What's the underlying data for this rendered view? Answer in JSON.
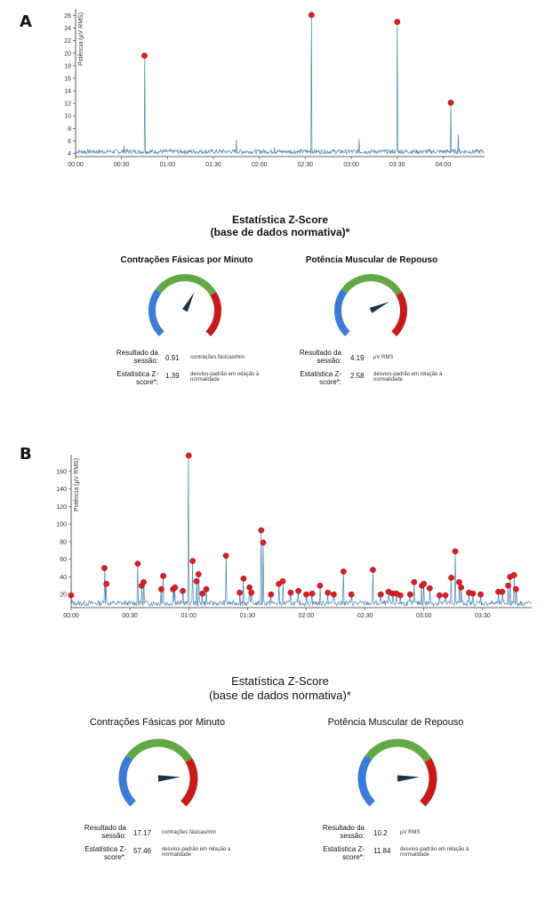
{
  "panels": [
    {
      "letter": "A",
      "chart_data": {
        "type": "line",
        "ylabel": "Potência (μV RMS)",
        "ylim": [
          3.5,
          26.5
        ],
        "yticks": [
          4,
          6,
          8,
          10,
          12,
          14,
          16,
          18,
          20,
          22,
          24,
          26
        ],
        "xticks": [
          "00:00",
          "00:30",
          "01:00",
          "01:30",
          "02:00",
          "02:30",
          "03:00",
          "03:30",
          "04:00"
        ],
        "x_minutes_max": 267,
        "x_unit": "minutes",
        "baseline": 4.3,
        "spikes": [
          {
            "x": 32,
            "y": 5.2
          },
          {
            "x": 45,
            "y": 19.6,
            "marked": true
          },
          {
            "x": 105,
            "y": 6.2
          },
          {
            "x": 130,
            "y": 5.0
          },
          {
            "x": 154,
            "y": 26.1,
            "marked": true
          },
          {
            "x": 185,
            "y": 6.3
          },
          {
            "x": 210,
            "y": 25.0,
            "marked": true
          },
          {
            "x": 245,
            "y": 12.1,
            "marked": true
          },
          {
            "x": 250,
            "y": 7.0
          }
        ]
      },
      "stats_title_line1": "Estatística Z-Score",
      "stats_title_line2": "(base de dados normativa)*",
      "gauges": [
        {
          "title": "Contrações Fásicas por Minuto",
          "needle_fraction": 0.6,
          "rows": [
            {
              "label": "Resultado da sessão:",
              "value": "0.91",
              "unit": "contrações fásicas/min"
            },
            {
              "label": "Estatística Z-score*:",
              "value": "1.39",
              "unit": "desvios-padrão em relação à normalidade"
            }
          ]
        },
        {
          "title": "Potência Muscular de Repouso",
          "needle_fraction": 0.74,
          "rows": [
            {
              "label": "Resultado da sessão:",
              "value": "4.19",
              "unit": "μV RMS"
            },
            {
              "label": "Estatística Z-score*:",
              "value": "2.58",
              "unit": "desvios-padrão em relação à normalidade"
            }
          ]
        }
      ]
    },
    {
      "letter": "B",
      "chart_data": {
        "type": "line",
        "ylabel": "Potência (μV RMS)",
        "ylim": [
          5,
          175
        ],
        "yticks": [
          20,
          40,
          60,
          80,
          100,
          120,
          140,
          160
        ],
        "xticks": [
          "00:00",
          "00:30",
          "01:00",
          "01:30",
          "02:00",
          "02:30",
          "03:00",
          "03:30"
        ],
        "x_minutes_max": 235,
        "x_unit": "minutes",
        "baseline": 10,
        "spikes": [
          {
            "x": 0,
            "y": 19,
            "marked": true
          },
          {
            "x": 17,
            "y": 50,
            "marked": true
          },
          {
            "x": 18,
            "y": 32,
            "marked": true
          },
          {
            "x": 34,
            "y": 55,
            "marked": true
          },
          {
            "x": 36,
            "y": 30,
            "marked": true
          },
          {
            "x": 37,
            "y": 34,
            "marked": true
          },
          {
            "x": 46,
            "y": 26,
            "marked": true
          },
          {
            "x": 47,
            "y": 41,
            "marked": true
          },
          {
            "x": 52,
            "y": 26,
            "marked": true
          },
          {
            "x": 53,
            "y": 28,
            "marked": true
          },
          {
            "x": 57,
            "y": 24,
            "marked": true
          },
          {
            "x": 60,
            "y": 178,
            "marked": true
          },
          {
            "x": 62,
            "y": 58,
            "marked": true
          },
          {
            "x": 64,
            "y": 35,
            "marked": true
          },
          {
            "x": 65,
            "y": 43,
            "marked": true
          },
          {
            "x": 67,
            "y": 21,
            "marked": true
          },
          {
            "x": 69,
            "y": 26,
            "marked": true
          },
          {
            "x": 79,
            "y": 64,
            "marked": true
          },
          {
            "x": 86,
            "y": 22,
            "marked": true
          },
          {
            "x": 88,
            "y": 38,
            "marked": true
          },
          {
            "x": 91,
            "y": 28,
            "marked": true
          },
          {
            "x": 92,
            "y": 22,
            "marked": true
          },
          {
            "x": 97,
            "y": 93,
            "marked": true
          },
          {
            "x": 98,
            "y": 79,
            "marked": true
          },
          {
            "x": 102,
            "y": 20,
            "marked": true
          },
          {
            "x": 106,
            "y": 32,
            "marked": true
          },
          {
            "x": 108,
            "y": 35,
            "marked": true
          },
          {
            "x": 112,
            "y": 22,
            "marked": true
          },
          {
            "x": 116,
            "y": 24,
            "marked": true
          },
          {
            "x": 120,
            "y": 20,
            "marked": true
          },
          {
            "x": 123,
            "y": 21,
            "marked": true
          },
          {
            "x": 127,
            "y": 30,
            "marked": true
          },
          {
            "x": 131,
            "y": 22,
            "marked": true
          },
          {
            "x": 134,
            "y": 20,
            "marked": true
          },
          {
            "x": 139,
            "y": 46,
            "marked": true
          },
          {
            "x": 143,
            "y": 20,
            "marked": true
          },
          {
            "x": 154,
            "y": 48,
            "marked": true
          },
          {
            "x": 158,
            "y": 20,
            "marked": true
          },
          {
            "x": 162,
            "y": 23,
            "marked": true
          },
          {
            "x": 164,
            "y": 21,
            "marked": true
          },
          {
            "x": 166,
            "y": 21,
            "marked": true
          },
          {
            "x": 168,
            "y": 19,
            "marked": true
          },
          {
            "x": 173,
            "y": 20,
            "marked": true
          },
          {
            "x": 175,
            "y": 34,
            "marked": true
          },
          {
            "x": 179,
            "y": 30,
            "marked": true
          },
          {
            "x": 180,
            "y": 32,
            "marked": true
          },
          {
            "x": 183,
            "y": 27,
            "marked": true
          },
          {
            "x": 188,
            "y": 19,
            "marked": true
          },
          {
            "x": 191,
            "y": 19,
            "marked": true
          },
          {
            "x": 194,
            "y": 39,
            "marked": true
          },
          {
            "x": 196,
            "y": 69,
            "marked": true
          },
          {
            "x": 198,
            "y": 34,
            "marked": true
          },
          {
            "x": 199,
            "y": 28,
            "marked": true
          },
          {
            "x": 203,
            "y": 22,
            "marked": true
          },
          {
            "x": 205,
            "y": 21,
            "marked": true
          },
          {
            "x": 209,
            "y": 20,
            "marked": true
          },
          {
            "x": 218,
            "y": 23,
            "marked": true
          },
          {
            "x": 220,
            "y": 23,
            "marked": true
          },
          {
            "x": 223,
            "y": 30,
            "marked": true
          },
          {
            "x": 224,
            "y": 40,
            "marked": true
          },
          {
            "x": 226,
            "y": 42,
            "marked": true
          },
          {
            "x": 227,
            "y": 26,
            "marked": true
          }
        ]
      },
      "stats_title_line1": "Estatística Z-Score",
      "stats_title_line2": "(base de dados normativa)*",
      "gauges": [
        {
          "title": "Contrações Fásicas por Minuto",
          "needle_fraction": 0.82,
          "rows": [
            {
              "label": "Resultado da sessão:",
              "value": "17.17",
              "unit": "contrações fásicas/min"
            },
            {
              "label": "Estatística Z-score*:",
              "value": "57.46",
              "unit": "desvios-padrão em relação à normalidade"
            }
          ]
        },
        {
          "title": "Potência Muscular de Repouso",
          "needle_fraction": 0.82,
          "rows": [
            {
              "label": "Resultado da sessão:",
              "value": "10.2",
              "unit": "μV RMS"
            },
            {
              "label": "Estatística Z-score*:",
              "value": "11.84",
              "unit": "desvios-padrão em relação à normalidade"
            }
          ]
        }
      ]
    }
  ],
  "colors": {
    "line": "#4a86b8",
    "marker": "#d81f26",
    "gauge_low": "#3d7bd6",
    "gauge_mid": "#63a845",
    "gauge_high": "#c81a1a",
    "needle": "#16344a"
  }
}
